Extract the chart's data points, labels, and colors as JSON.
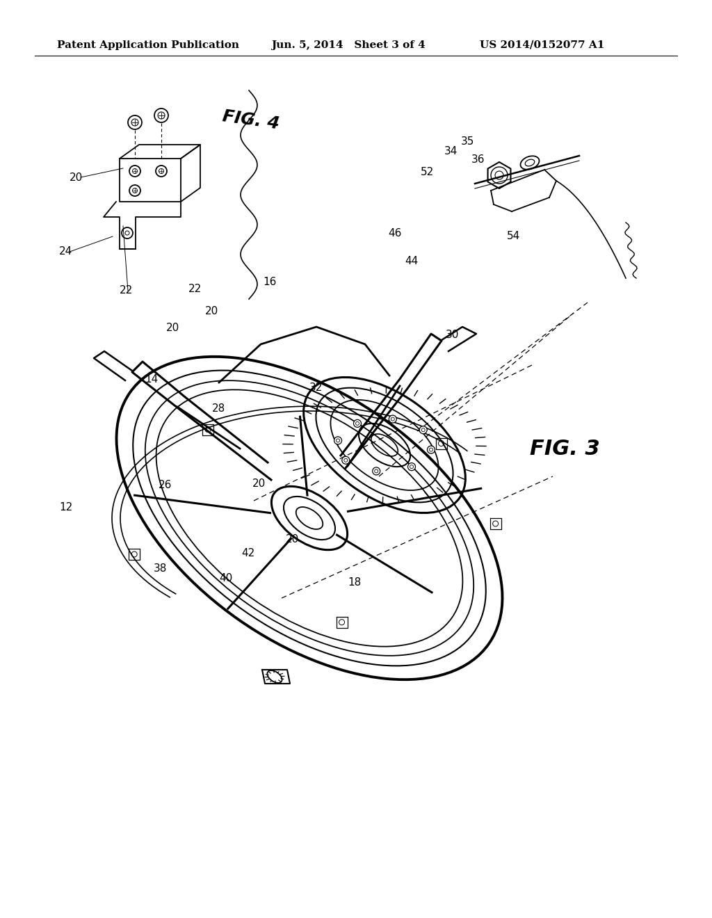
{
  "bg_color": "#ffffff",
  "header_left": "Patent Application Publication",
  "header_center": "Jun. 5, 2014   Sheet 3 of 4",
  "header_right": "US 2014/0152077 A1",
  "fig3_label": "FIG. 3",
  "fig4_label": "FIG. 4",
  "header_fontsize": 11,
  "ref_fontsize": 11,
  "fig_label_fontsize": 20
}
